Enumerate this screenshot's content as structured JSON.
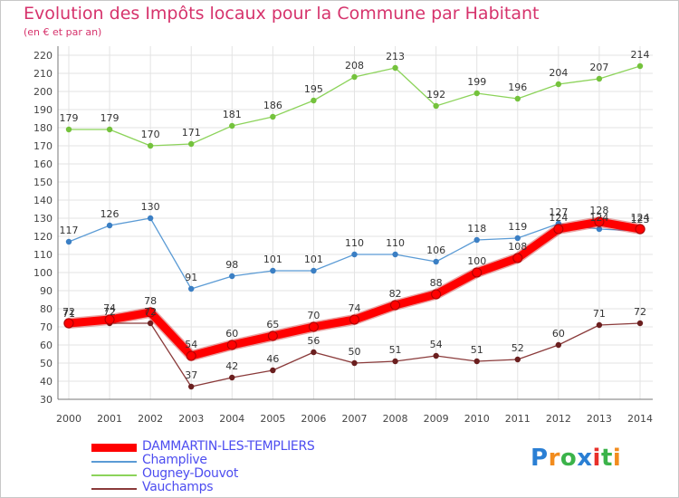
{
  "brand": {
    "text": "Proxiti",
    "letter_colors": [
      "#2a7fd4",
      "#f28c1e",
      "#3bb34a",
      "#2a7fd4",
      "#e8302a",
      "#3bb34a",
      "#f28c1e"
    ]
  },
  "chart_data": {
    "type": "line",
    "title": "Evolution des Impôts locaux pour la Commune par Habitant",
    "subtitle": "(en € et par an)",
    "xlabel": "",
    "ylabel": "",
    "ylim": [
      30,
      220
    ],
    "ytick_step": 10,
    "grid": true,
    "legend_position": "bottom-left",
    "categories": [
      "2000",
      "2001",
      "2002",
      "2003",
      "2004",
      "2005",
      "2006",
      "2007",
      "2008",
      "2009",
      "2010",
      "2011",
      "2012",
      "2013",
      "2014"
    ],
    "series": [
      {
        "name": "DAMMARTIN-LES-TEMPLIERS",
        "color": "#ff0000",
        "dot_color": "#ff0000",
        "values": [
          72,
          74,
          78,
          54,
          60,
          65,
          70,
          74,
          82,
          88,
          100,
          108,
          124,
          128,
          124
        ]
      },
      {
        "name": "Champlive",
        "color": "#5b9bd5",
        "dot_color": "#3b7fc4",
        "values": [
          117,
          126,
          130,
          91,
          98,
          101,
          101,
          110,
          110,
          106,
          118,
          119,
          127,
          124,
          123
        ]
      },
      {
        "name": "Ougney-Douvot",
        "color": "#8cd35a",
        "dot_color": "#74c23c",
        "values": [
          179,
          179,
          170,
          171,
          181,
          186,
          195,
          208,
          213,
          192,
          199,
          196,
          204,
          207,
          214
        ]
      },
      {
        "name": "Vauchamps",
        "color": "#8a3a3a",
        "dot_color": "#6b1f1f",
        "values": [
          71,
          72,
          72,
          37,
          42,
          46,
          56,
          50,
          51,
          54,
          51,
          52,
          60,
          71,
          72
        ]
      }
    ]
  }
}
